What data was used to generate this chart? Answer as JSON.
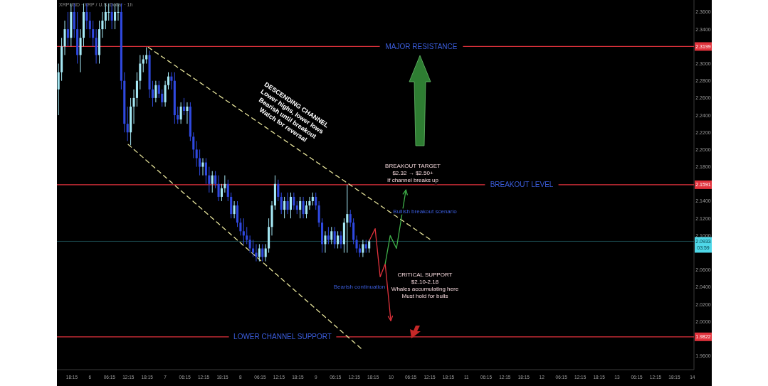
{
  "chart_data": {
    "type": "candlestick",
    "title": "XRPUSD · XRP / U.S. Dollar · 1h",
    "x": [
      "--12-05T14:00",
      "--12-05T15:00",
      "--12-05T16:00",
      "--12-05T17:00",
      "--12-05T18:00",
      "--12-05T19:00",
      "--12-05T20:00",
      "--12-05T21:00",
      "--12-05T22:00",
      "--12-05T23:00",
      "--12-06T00:00",
      "--12-06T01:00",
      "--12-06T02:00",
      "--12-06T03:00",
      "--12-06T04:00",
      "--12-06T05:00",
      "--12-06T06:00",
      "--12-06T07:00",
      "--12-06T08:00",
      "--12-06T09:00",
      "--12-06T10:00",
      "--12-06T11:00",
      "--12-06T12:00",
      "--12-06T13:00",
      "--12-06T14:00",
      "--12-06T15:00",
      "--12-06T16:00",
      "--12-06T17:00",
      "--12-06T18:00",
      "--12-06T19:00",
      "--12-06T20:00",
      "--12-06T21:00",
      "--12-06T22:00",
      "--12-06T23:00",
      "--12-07T00:00",
      "--12-07T01:00",
      "--12-07T02:00",
      "--12-07T03:00",
      "--12-07T04:00",
      "--12-07T05:00",
      "--12-07T06:00",
      "--12-07T07:00",
      "--12-07T08:00",
      "--12-07T09:00",
      "--12-07T10:00",
      "--12-07T11:00",
      "--12-07T12:00",
      "--12-07T13:00",
      "--12-07T14:00",
      "--12-07T15:00",
      "--12-07T16:00",
      "--12-07T17:00",
      "--12-07T18:00",
      "--12-07T19:00",
      "--12-07T20:00",
      "--12-07T21:00",
      "--12-07T22:00",
      "--12-07T23:00",
      "--12-08T00:00",
      "--12-08T01:00",
      "--12-08T02:00",
      "--12-08T03:00",
      "--12-08T04:00",
      "--12-08T05:00",
      "--12-08T06:00",
      "--12-08T07:00",
      "--12-08T08:00",
      "--12-08T09:00",
      "--12-08T10:00",
      "--12-08T11:00",
      "--12-08T12:00",
      "--12-08T13:00",
      "--12-08T14:00",
      "--12-08T15:00",
      "--12-08T16:00",
      "--12-08T17:00",
      "--12-08T18:00",
      "--12-08T19:00",
      "--12-08T20:00",
      "--12-08T21:00",
      "--12-08T22:00",
      "--12-08T23:00",
      "--12-09T00:00",
      "--12-09T01:00",
      "--12-09T02:00",
      "--12-09T03:00",
      "--12-09T04:00",
      "--12-09T05:00",
      "--12-09T06:00",
      "--12-09T07:00",
      "--12-09T08:00",
      "--12-09T09:00",
      "--12-09T10:00",
      "--12-09T11:00",
      "--12-09T12:00",
      "--12-09T13:00",
      "--12-09T14:00",
      "--12-09T15:00",
      "--12-09T16:00",
      "--12-09T17:00"
    ],
    "ohlc": [
      [
        2.27,
        2.3,
        2.24,
        2.29
      ],
      [
        2.29,
        2.33,
        2.28,
        2.32
      ],
      [
        2.32,
        2.35,
        2.31,
        2.34
      ],
      [
        2.34,
        2.36,
        2.32,
        2.33
      ],
      [
        2.33,
        2.37,
        2.32,
        2.36
      ],
      [
        2.36,
        2.37,
        2.33,
        2.34
      ],
      [
        2.34,
        2.36,
        2.3,
        2.31
      ],
      [
        2.31,
        2.34,
        2.29,
        2.33
      ],
      [
        2.33,
        2.37,
        2.32,
        2.36
      ],
      [
        2.36,
        2.37,
        2.34,
        2.35
      ],
      [
        2.35,
        2.36,
        2.33,
        2.34
      ],
      [
        2.34,
        2.35,
        2.32,
        2.33
      ],
      [
        2.33,
        2.34,
        2.3,
        2.31
      ],
      [
        2.31,
        2.35,
        2.3,
        2.34
      ],
      [
        2.34,
        2.36,
        2.33,
        2.35
      ],
      [
        2.35,
        2.37,
        2.34,
        2.36
      ],
      [
        2.36,
        2.37,
        2.35,
        2.36
      ],
      [
        2.36,
        2.37,
        2.34,
        2.35
      ],
      [
        2.35,
        2.37,
        2.34,
        2.36
      ],
      [
        2.36,
        2.37,
        2.35,
        2.36
      ],
      [
        2.36,
        2.37,
        2.27,
        2.28
      ],
      [
        2.28,
        2.29,
        2.22,
        2.23
      ],
      [
        2.23,
        2.25,
        2.21,
        2.22
      ],
      [
        2.22,
        2.26,
        2.205,
        2.25
      ],
      [
        2.25,
        2.27,
        2.23,
        2.26
      ],
      [
        2.26,
        2.29,
        2.25,
        2.28
      ],
      [
        2.28,
        2.31,
        2.27,
        2.3
      ],
      [
        2.3,
        2.31,
        2.29,
        2.305
      ],
      [
        2.305,
        2.319,
        2.3,
        2.31
      ],
      [
        2.31,
        2.315,
        2.26,
        2.27
      ],
      [
        2.27,
        2.28,
        2.25,
        2.26
      ],
      [
        2.26,
        2.28,
        2.255,
        2.275
      ],
      [
        2.275,
        2.28,
        2.26,
        2.265
      ],
      [
        2.265,
        2.27,
        2.25,
        2.255
      ],
      [
        2.255,
        2.28,
        2.25,
        2.275
      ],
      [
        2.275,
        2.29,
        2.27,
        2.285
      ],
      [
        2.285,
        2.29,
        2.27,
        2.28
      ],
      [
        2.28,
        2.29,
        2.23,
        2.24
      ],
      [
        2.24,
        2.25,
        2.23,
        2.235
      ],
      [
        2.235,
        2.255,
        2.23,
        2.25
      ],
      [
        2.25,
        2.26,
        2.24,
        2.245
      ],
      [
        2.245,
        2.255,
        2.23,
        2.25
      ],
      [
        2.25,
        2.255,
        2.21,
        2.215
      ],
      [
        2.215,
        2.22,
        2.19,
        2.2
      ],
      [
        2.2,
        2.21,
        2.18,
        2.19
      ],
      [
        2.19,
        2.2,
        2.17,
        2.18
      ],
      [
        2.18,
        2.19,
        2.17,
        2.185
      ],
      [
        2.185,
        2.19,
        2.16,
        2.17
      ],
      [
        2.17,
        2.18,
        2.15,
        2.16
      ],
      [
        2.16,
        2.175,
        2.15,
        2.17
      ],
      [
        2.17,
        2.175,
        2.155,
        2.16
      ],
      [
        2.16,
        2.17,
        2.14,
        2.145
      ],
      [
        2.145,
        2.16,
        2.14,
        2.155
      ],
      [
        2.155,
        2.17,
        2.15,
        2.16
      ],
      [
        2.16,
        2.165,
        2.14,
        2.145
      ],
      [
        2.145,
        2.15,
        2.12,
        2.125
      ],
      [
        2.125,
        2.14,
        2.12,
        2.135
      ],
      [
        2.135,
        2.14,
        2.11,
        2.115
      ],
      [
        2.115,
        2.12,
        2.1,
        2.105
      ],
      [
        2.105,
        2.12,
        2.09,
        2.1
      ],
      [
        2.1,
        2.11,
        2.09,
        2.095
      ],
      [
        2.095,
        2.1,
        2.08,
        2.085
      ],
      [
        2.085,
        2.095,
        2.075,
        2.08
      ],
      [
        2.08,
        2.09,
        2.07,
        2.075
      ],
      [
        2.075,
        2.09,
        2.07,
        2.085
      ],
      [
        2.085,
        2.09,
        2.07,
        2.075
      ],
      [
        2.075,
        2.09,
        2.07,
        2.085
      ],
      [
        2.085,
        2.12,
        2.08,
        2.11
      ],
      [
        2.11,
        2.14,
        2.1,
        2.135
      ],
      [
        2.135,
        2.17,
        2.13,
        2.16
      ],
      [
        2.16,
        2.165,
        2.14,
        2.145
      ],
      [
        2.145,
        2.15,
        2.125,
        2.13
      ],
      [
        2.13,
        2.145,
        2.12,
        2.14
      ],
      [
        2.14,
        2.15,
        2.125,
        2.13
      ],
      [
        2.13,
        2.15,
        2.12,
        2.145
      ],
      [
        2.145,
        2.15,
        2.13,
        2.135
      ],
      [
        2.135,
        2.14,
        2.125,
        2.13
      ],
      [
        2.13,
        2.145,
        2.12,
        2.14
      ],
      [
        2.14,
        2.145,
        2.12,
        2.125
      ],
      [
        2.125,
        2.14,
        2.12,
        2.135
      ],
      [
        2.135,
        2.145,
        2.13,
        2.14
      ],
      [
        2.14,
        2.15,
        2.135,
        2.145
      ],
      [
        2.145,
        2.15,
        2.13,
        2.135
      ],
      [
        2.135,
        2.14,
        2.11,
        2.115
      ],
      [
        2.115,
        2.12,
        2.08,
        2.09
      ],
      [
        2.09,
        2.105,
        2.08,
        2.1
      ],
      [
        2.1,
        2.11,
        2.09,
        2.095
      ],
      [
        2.095,
        2.11,
        2.09,
        2.105
      ],
      [
        2.105,
        2.11,
        2.085,
        2.09
      ],
      [
        2.09,
        2.105,
        2.085,
        2.1
      ],
      [
        2.1,
        2.105,
        2.085,
        2.09
      ],
      [
        2.09,
        2.12,
        2.08,
        2.115
      ],
      [
        2.115,
        2.1591,
        2.08,
        2.125
      ],
      [
        2.125,
        2.13,
        2.11,
        2.115
      ],
      [
        2.115,
        2.12,
        2.09,
        2.095
      ],
      [
        2.095,
        2.1,
        2.08,
        2.085
      ],
      [
        2.085,
        2.09,
        2.075,
        2.08
      ],
      [
        2.08,
        2.095,
        2.075,
        2.09
      ],
      [
        2.09,
        2.095,
        2.08,
        2.085
      ],
      [
        2.085,
        2.095,
        2.08,
        2.0933
      ]
    ],
    "series": [
      {
        "type": "line",
        "color": "#e6e39a",
        "line_style": "dashed",
        "x": [
          "--12-06T18:36",
          "--12-10T12:36"
        ],
        "values": [
          2.319,
          2.095
        ]
      },
      {
        "type": "line",
        "color": "#e6e39a",
        "line_style": "dashed",
        "x": [
          "--12-06T12:12",
          "--12-09T14:36"
        ],
        "values": [
          2.206,
          1.968
        ]
      },
      {
        "type": "line",
        "color": "#e0323c",
        "line_style": "solid",
        "x": [
          "--12-09T16:54",
          "--12-09T18:54",
          "--12-09T20:30",
          "--12-09T22:06",
          "--12-09T23:54"
        ],
        "values": [
          2.093,
          2.108,
          2.052,
          2.067,
          2.001
        ]
      },
      {
        "type": "line",
        "color": "#3fb24a",
        "line_style": "solid",
        "x": [
          "--12-09T22:06",
          "--12-09T23:42",
          "--12-10T01:42",
          "--12-10T04:42"
        ],
        "values": [
          2.067,
          2.1,
          2.085,
          2.153
        ]
      }
    ],
    "xlim": [
      "--12-05T13:30",
      "--12-14T00:30"
    ],
    "xticks": [
      {
        "value": "--12-05T18:15",
        "label": "18:15"
      },
      {
        "value": "--12-06",
        "label": "6"
      },
      {
        "value": "--12-06T06:15",
        "label": "06:15"
      },
      {
        "value": "--12-06T12:15",
        "label": "12:15"
      },
      {
        "value": "--12-06T18:15",
        "label": "18:15"
      },
      {
        "value": "--12-07",
        "label": "7"
      },
      {
        "value": "--12-07T06:15",
        "label": "06:15"
      },
      {
        "value": "--12-07T12:15",
        "label": "12:15"
      },
      {
        "value": "--12-07T18:15",
        "label": "18:15"
      },
      {
        "value": "--12-08",
        "label": "8"
      },
      {
        "value": "--12-08T06:15",
        "label": "06:15"
      },
      {
        "value": "--12-08T12:15",
        "label": "12:15"
      },
      {
        "value": "--12-08T18:15",
        "label": "18:15"
      },
      {
        "value": "--12-09",
        "label": "9"
      },
      {
        "value": "--12-09T06:15",
        "label": "06:15"
      },
      {
        "value": "--12-09T12:15",
        "label": "12:15"
      },
      {
        "value": "--12-09T18:15",
        "label": "18:15"
      },
      {
        "value": "--12-10",
        "label": "10"
      },
      {
        "value": "--12-10T06:15",
        "label": "06:15"
      },
      {
        "value": "--12-10T12:15",
        "label": "12:15"
      },
      {
        "value": "--12-10T18:15",
        "label": "18:15"
      },
      {
        "value": "--12-11",
        "label": "11"
      },
      {
        "value": "--12-11T06:15",
        "label": "06:15"
      },
      {
        "value": "--12-11T12:15",
        "label": "12:15"
      },
      {
        "value": "--12-11T18:15",
        "label": "18:15"
      },
      {
        "value": "--12-12",
        "label": "12"
      },
      {
        "value": "--12-12T06:15",
        "label": "06:15"
      },
      {
        "value": "--12-12T12:15",
        "label": "12:15"
      },
      {
        "value": "--12-12T18:15",
        "label": "18:15"
      },
      {
        "value": "--12-13",
        "label": "13"
      },
      {
        "value": "--12-13T06:15",
        "label": "06:15"
      },
      {
        "value": "--12-13T12:15",
        "label": "12:15"
      },
      {
        "value": "--12-13T18:15",
        "label": "18:15"
      },
      {
        "value": "--12-14",
        "label": "14"
      }
    ],
    "ylim": [
      1.944,
      2.374
    ],
    "yticks": [
      {
        "value": 2.36,
        "label": "2.3600"
      },
      {
        "value": 2.34,
        "label": "2.3400"
      },
      {
        "value": 2.3199,
        "label": "2.3199"
      },
      {
        "value": 2.3,
        "label": "2.3000"
      },
      {
        "value": 2.28,
        "label": "2.2800"
      },
      {
        "value": 2.26,
        "label": "2.2600"
      },
      {
        "value": 2.24,
        "label": "2.2400"
      },
      {
        "value": 2.22,
        "label": "2.2200"
      },
      {
        "value": 2.2,
        "label": "2.2000"
      },
      {
        "value": 2.18,
        "label": "2.1800"
      },
      {
        "value": 2.1591,
        "label": "2.1591"
      },
      {
        "value": 2.14,
        "label": "2.1400"
      },
      {
        "value": 2.12,
        "label": "2.1200"
      },
      {
        "value": 2.1,
        "label": "2.1000"
      },
      {
        "value": 2.0933,
        "label": "2.0933"
      },
      {
        "value": 2.06,
        "label": "2.0600"
      },
      {
        "value": 2.04,
        "label": "2.0400"
      },
      {
        "value": 2.02,
        "label": "2.0200"
      },
      {
        "value": 2,
        "label": "2.0000"
      },
      {
        "value": 1.9822,
        "label": "1.9822"
      },
      {
        "value": 1.96,
        "label": "1.9600"
      }
    ],
    "ref_lines": [
      {
        "axis": "y",
        "value": 2.3199,
        "label": "MAJOR RESISTANCE",
        "color": "#e0323c"
      },
      {
        "axis": "y",
        "value": 2.1591,
        "label": "BREAKOUT LEVEL",
        "color": "#e0323c"
      },
      {
        "axis": "y",
        "value": 1.9822,
        "label": "LOWER CHANNEL SUPPORT",
        "color": "#e0323c"
      },
      {
        "axis": "y",
        "value": 2.0933,
        "color": "#4fd8e8"
      }
    ],
    "annotations": [
      "DESCENDING CHANNEL\nLower highs, lower lows\nBearish until breakout\nWatch for reversal",
      "BREAKOUT TARGET\n$2.32 → $2.50+\nIf channel breaks up",
      "Bullish breakout scenario",
      "Bearish continuation",
      "CRITICAL SUPPORT\n$2.10-2.18\nWhales accumulating here\nMust hold for bulls",
      "03:59"
    ]
  }
}
